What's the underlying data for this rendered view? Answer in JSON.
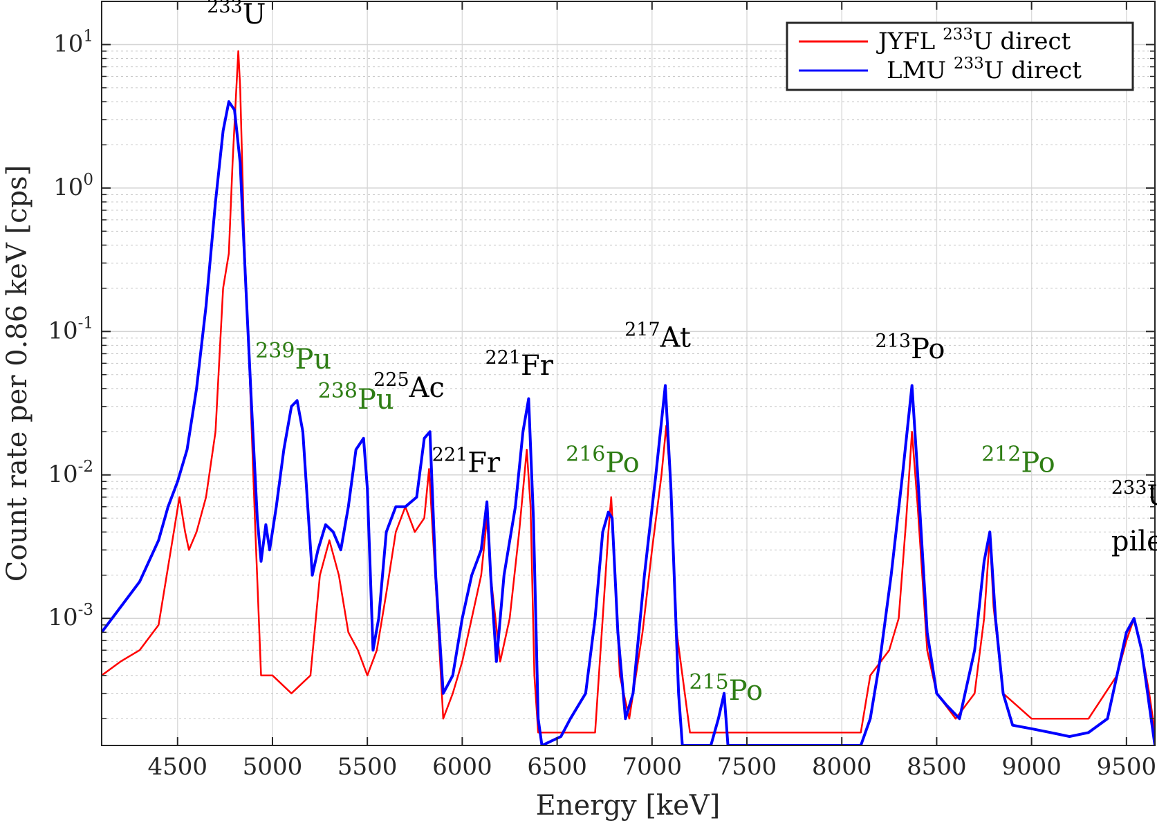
{
  "chart_data": {
    "type": "line",
    "title": "",
    "xlabel": "Energy [keV]",
    "ylabel": "Count rate per 0.86 keV [cps]",
    "x_scale": "linear",
    "y_scale": "log",
    "xlim": [
      4100,
      9650
    ],
    "ylim": [
      0.00013,
      20
    ],
    "x_ticks": [
      4500,
      5000,
      5500,
      6000,
      6500,
      7000,
      7500,
      8000,
      8500,
      9000,
      9500
    ],
    "x_tick_labels": [
      "4500",
      "5000",
      "5500",
      "6000",
      "6500",
      "7000",
      "7500",
      "8000",
      "8500",
      "9000",
      "9500"
    ],
    "y_ticks": [
      {
        "value": 0.001,
        "base": "10",
        "exp": "-3"
      },
      {
        "value": 0.01,
        "base": "10",
        "exp": "-2"
      },
      {
        "value": 0.1,
        "base": "10",
        "exp": "-1"
      },
      {
        "value": 1,
        "base": "10",
        "exp": "0"
      },
      {
        "value": 10,
        "base": "10",
        "exp": "1"
      }
    ],
    "grid": true,
    "minor_grid": true,
    "legend_position": "top-right",
    "series": [
      {
        "name": "JYFL 233U direct",
        "legend_pre": "JYFL ",
        "legend_sup": "233",
        "legend_post": "U direct",
        "color": "#ff0000",
        "points": [
          [
            4100,
            0.0004
          ],
          [
            4200,
            0.0005
          ],
          [
            4300,
            0.0006
          ],
          [
            4400,
            0.0009
          ],
          [
            4480,
            0.004
          ],
          [
            4510,
            0.007
          ],
          [
            4540,
            0.004
          ],
          [
            4560,
            0.003
          ],
          [
            4600,
            0.004
          ],
          [
            4650,
            0.007
          ],
          [
            4700,
            0.02
          ],
          [
            4740,
            0.2
          ],
          [
            4770,
            0.35
          ],
          [
            4790,
            1.5
          ],
          [
            4810,
            5.0
          ],
          [
            4820,
            9.0
          ],
          [
            4830,
            5.0
          ],
          [
            4850,
            0.5
          ],
          [
            4880,
            0.05
          ],
          [
            4910,
            0.004
          ],
          [
            4940,
            0.0004
          ],
          [
            5000,
            0.0004
          ],
          [
            5100,
            0.0003
          ],
          [
            5200,
            0.0004
          ],
          [
            5250,
            0.002
          ],
          [
            5300,
            0.0035
          ],
          [
            5350,
            0.002
          ],
          [
            5400,
            0.0008
          ],
          [
            5450,
            0.0006
          ],
          [
            5500,
            0.0004
          ],
          [
            5550,
            0.0006
          ],
          [
            5600,
            0.0015
          ],
          [
            5650,
            0.004
          ],
          [
            5700,
            0.006
          ],
          [
            5750,
            0.004
          ],
          [
            5800,
            0.005
          ],
          [
            5825,
            0.011
          ],
          [
            5850,
            0.003
          ],
          [
            5880,
            0.0006
          ],
          [
            5900,
            0.0002
          ],
          [
            5950,
            0.0003
          ],
          [
            6000,
            0.0005
          ],
          [
            6050,
            0.001
          ],
          [
            6100,
            0.002
          ],
          [
            6130,
            0.005
          ],
          [
            6150,
            0.002
          ],
          [
            6200,
            0.0005
          ],
          [
            6250,
            0.001
          ],
          [
            6300,
            0.004
          ],
          [
            6340,
            0.015
          ],
          [
            6360,
            0.006
          ],
          [
            6380,
            0.0004
          ],
          [
            6400,
            0.00016
          ],
          [
            6700,
            0.00016
          ],
          [
            6740,
            0.001
          ],
          [
            6770,
            0.004
          ],
          [
            6785,
            0.007
          ],
          [
            6800,
            0.003
          ],
          [
            6830,
            0.0004
          ],
          [
            6880,
            0.0002
          ],
          [
            6950,
            0.0008
          ],
          [
            7000,
            0.003
          ],
          [
            7050,
            0.01
          ],
          [
            7075,
            0.022
          ],
          [
            7100,
            0.008
          ],
          [
            7130,
            0.0008
          ],
          [
            7200,
            0.00016
          ],
          [
            8100,
            0.00016
          ],
          [
            8150,
            0.0004
          ],
          [
            8250,
            0.0006
          ],
          [
            8300,
            0.001
          ],
          [
            8340,
            0.005
          ],
          [
            8370,
            0.02
          ],
          [
            8400,
            0.006
          ],
          [
            8450,
            0.0006
          ],
          [
            8500,
            0.0003
          ],
          [
            8600,
            0.0002
          ],
          [
            8700,
            0.0003
          ],
          [
            8750,
            0.001
          ],
          [
            8780,
            0.0038
          ],
          [
            8800,
            0.0012
          ],
          [
            8850,
            0.0003
          ],
          [
            9000,
            0.0002
          ],
          [
            9300,
            0.0002
          ],
          [
            9450,
            0.0004
          ],
          [
            9500,
            0.0007
          ],
          [
            9540,
            0.001
          ],
          [
            9580,
            0.0006
          ],
          [
            9620,
            0.0003
          ],
          [
            9650,
            0.00016
          ]
        ]
      },
      {
        "name": "LMU 233U direct",
        "legend_pre": "LMU ",
        "legend_sup": "233",
        "legend_post": "U direct",
        "color": "#0000ff",
        "points": [
          [
            4100,
            0.0008
          ],
          [
            4200,
            0.0012
          ],
          [
            4300,
            0.0018
          ],
          [
            4400,
            0.0035
          ],
          [
            4450,
            0.006
          ],
          [
            4500,
            0.009
          ],
          [
            4550,
            0.015
          ],
          [
            4600,
            0.04
          ],
          [
            4650,
            0.15
          ],
          [
            4700,
            0.8
          ],
          [
            4740,
            2.5
          ],
          [
            4770,
            4.0
          ],
          [
            4800,
            3.5
          ],
          [
            4830,
            1.5
          ],
          [
            4860,
            0.2
          ],
          [
            4890,
            0.03
          ],
          [
            4920,
            0.005
          ],
          [
            4940,
            0.0025
          ],
          [
            4965,
            0.0045
          ],
          [
            4985,
            0.003
          ],
          [
            5020,
            0.006
          ],
          [
            5060,
            0.015
          ],
          [
            5100,
            0.03
          ],
          [
            5130,
            0.033
          ],
          [
            5160,
            0.02
          ],
          [
            5190,
            0.005
          ],
          [
            5210,
            0.002
          ],
          [
            5240,
            0.003
          ],
          [
            5280,
            0.0045
          ],
          [
            5320,
            0.004
          ],
          [
            5360,
            0.003
          ],
          [
            5400,
            0.006
          ],
          [
            5440,
            0.015
          ],
          [
            5480,
            0.018
          ],
          [
            5500,
            0.008
          ],
          [
            5530,
            0.0006
          ],
          [
            5560,
            0.001
          ],
          [
            5600,
            0.004
          ],
          [
            5650,
            0.006
          ],
          [
            5700,
            0.006
          ],
          [
            5760,
            0.007
          ],
          [
            5800,
            0.018
          ],
          [
            5830,
            0.02
          ],
          [
            5860,
            0.002
          ],
          [
            5900,
            0.0003
          ],
          [
            5950,
            0.0004
          ],
          [
            6000,
            0.001
          ],
          [
            6050,
            0.002
          ],
          [
            6100,
            0.003
          ],
          [
            6130,
            0.0065
          ],
          [
            6150,
            0.002
          ],
          [
            6180,
            0.0005
          ],
          [
            6220,
            0.002
          ],
          [
            6280,
            0.006
          ],
          [
            6320,
            0.02
          ],
          [
            6350,
            0.034
          ],
          [
            6375,
            0.005
          ],
          [
            6400,
            0.0002
          ],
          [
            6420,
            0.00013
          ],
          [
            6520,
            0.00015
          ],
          [
            6570,
            0.0002
          ],
          [
            6650,
            0.0003
          ],
          [
            6700,
            0.001
          ],
          [
            6740,
            0.004
          ],
          [
            6770,
            0.0055
          ],
          [
            6790,
            0.005
          ],
          [
            6820,
            0.0008
          ],
          [
            6860,
            0.0002
          ],
          [
            6900,
            0.0003
          ],
          [
            6960,
            0.002
          ],
          [
            7020,
            0.01
          ],
          [
            7070,
            0.042
          ],
          [
            7100,
            0.008
          ],
          [
            7140,
            0.0003
          ],
          [
            7160,
            0.00013
          ],
          [
            7310,
            0.00013
          ],
          [
            7350,
            0.0002
          ],
          [
            7380,
            0.0003
          ],
          [
            7400,
            0.00013
          ],
          [
            8100,
            0.00013
          ],
          [
            8150,
            0.0002
          ],
          [
            8200,
            0.0005
          ],
          [
            8260,
            0.002
          ],
          [
            8320,
            0.01
          ],
          [
            8370,
            0.042
          ],
          [
            8400,
            0.01
          ],
          [
            8450,
            0.0008
          ],
          [
            8500,
            0.0003
          ],
          [
            8550,
            0.00025
          ],
          [
            8620,
            0.0002
          ],
          [
            8700,
            0.0006
          ],
          [
            8750,
            0.0025
          ],
          [
            8780,
            0.004
          ],
          [
            8810,
            0.001
          ],
          [
            8850,
            0.0003
          ],
          [
            8900,
            0.00018
          ],
          [
            9000,
            0.00017
          ],
          [
            9100,
            0.00016
          ],
          [
            9200,
            0.00015
          ],
          [
            9300,
            0.00016
          ],
          [
            9400,
            0.0002
          ],
          [
            9450,
            0.0004
          ],
          [
            9500,
            0.0008
          ],
          [
            9540,
            0.001
          ],
          [
            9580,
            0.0006
          ],
          [
            9630,
            0.0002
          ],
          [
            9650,
            0.00013
          ]
        ]
      }
    ],
    "annotations": [
      {
        "id": "u233",
        "sup": "233",
        "sym": "U",
        "color": "black",
        "x": 4810,
        "y": 14,
        "anchor": "middle",
        "sup_rel": 0.67
      },
      {
        "id": "pu239",
        "sup": "239",
        "sym": "Pu",
        "color": "green",
        "x": 5110,
        "y": 0.055,
        "anchor": "middle",
        "sup_rel": 0.75
      },
      {
        "id": "pu238",
        "sup": "238",
        "sym": "Pu",
        "color": "green",
        "x": 5440,
        "y": 0.029,
        "anchor": "middle",
        "sup_rel": 0.75
      },
      {
        "id": "ac225",
        "sup": "225",
        "sym": "Ac",
        "color": "black",
        "x": 5720,
        "y": 0.035,
        "anchor": "middle",
        "sup_rel": 0.67
      },
      {
        "id": "fr221a",
        "sup": "221",
        "sym": "Fr",
        "color": "black",
        "x": 6020,
        "y": 0.0105,
        "anchor": "middle",
        "sup_rel": 0.67
      },
      {
        "id": "fr221b",
        "sup": "221",
        "sym": "Fr",
        "color": "black",
        "x": 6300,
        "y": 0.05,
        "anchor": "middle",
        "sup_rel": 0.67
      },
      {
        "id": "po216",
        "sup": "216",
        "sym": "Po",
        "color": "green",
        "x": 6740,
        "y": 0.0105,
        "anchor": "middle",
        "sup_rel": 0.75
      },
      {
        "id": "at217",
        "sup": "217",
        "sym": "At",
        "color": "black",
        "x": 7030,
        "y": 0.078,
        "anchor": "middle",
        "sup_rel": 0.67
      },
      {
        "id": "po215",
        "sup": "215",
        "sym": "Po",
        "color": "green",
        "x": 7390,
        "y": 0.00027,
        "anchor": "middle",
        "sup_rel": 0.75
      },
      {
        "id": "po213",
        "sup": "213",
        "sym": "Po",
        "color": "black",
        "x": 8360,
        "y": 0.065,
        "anchor": "middle",
        "sup_rel": 0.67
      },
      {
        "id": "po212",
        "sup": "212",
        "sym": "Po",
        "color": "green",
        "x": 8930,
        "y": 0.0105,
        "anchor": "middle",
        "sup_rel": 0.75
      },
      {
        "id": "u233pile",
        "sup": "233",
        "sym": "U",
        "color": "black",
        "x": 9420,
        "y": 0.0062,
        "anchor": "start",
        "sup_rel": 0.67,
        "line2": "pileup"
      }
    ]
  }
}
